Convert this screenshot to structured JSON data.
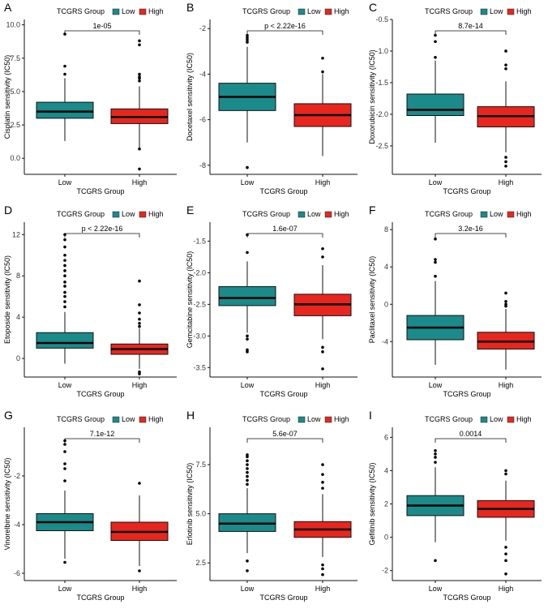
{
  "figure": {
    "colors": {
      "low": "#1b8a8a",
      "high": "#e8261e",
      "axis": "#111111",
      "outlier": "#000000"
    },
    "legend_title": "TCGRS Group",
    "legend_labels": [
      "Low",
      "High"
    ]
  },
  "chart_data": [
    {
      "panel": "A",
      "type": "box",
      "title": "",
      "xlabel": "TCGRS Group",
      "ylabel": "Cisplatin sensitivity (IC50)",
      "categories": [
        "Low",
        "High"
      ],
      "ylim": [
        -1.2,
        10.4
      ],
      "yticks": [
        0.0,
        2.5,
        5.0,
        7.5,
        10.0
      ],
      "ytick_labels": [
        "0.0",
        "2.5",
        "5.0",
        "7.5",
        "10.0"
      ],
      "pvalue": "1e-05",
      "boxes": [
        {
          "group": "Low",
          "whisker_low": 1.3,
          "q1": 3.0,
          "median": 3.5,
          "q3": 4.2,
          "whisker_high": 6.0,
          "outliers": [
            6.3,
            6.9,
            9.3
          ]
        },
        {
          "group": "High",
          "whisker_low": 0.8,
          "q1": 2.6,
          "median": 3.1,
          "q3": 3.7,
          "whisker_high": 5.4,
          "outliers": [
            0.7,
            -0.8,
            5.8,
            6.0,
            6.1,
            6.3,
            8.5,
            8.8
          ]
        }
      ]
    },
    {
      "panel": "B",
      "type": "box",
      "title": "",
      "xlabel": "TCGRS Group",
      "ylabel": "Docetaxel sensitivity (IC50)",
      "categories": [
        "Low",
        "High"
      ],
      "ylim": [
        -8.4,
        -1.6
      ],
      "yticks": [
        -8,
        -6,
        -4,
        -2
      ],
      "ytick_labels": [
        "-8",
        "-6",
        "-4",
        "-2"
      ],
      "pvalue": "p < 2.22e-16",
      "boxes": [
        {
          "group": "Low",
          "whisker_low": -7.0,
          "q1": -5.6,
          "median": -5.0,
          "q3": -4.4,
          "whisker_high": -2.8,
          "outliers": [
            -2.6,
            -2.5,
            -2.4,
            -2.3,
            -8.1
          ]
        },
        {
          "group": "High",
          "whisker_low": -7.6,
          "q1": -6.3,
          "median": -5.8,
          "q3": -5.3,
          "whisker_high": -4.0,
          "outliers": [
            -3.9,
            -3.3
          ]
        }
      ]
    },
    {
      "panel": "C",
      "type": "box",
      "title": "",
      "xlabel": "TCGRS Group",
      "ylabel": "Doxorubicin sensitivity (IC50)",
      "categories": [
        "Low",
        "High"
      ],
      "ylim": [
        -2.95,
        -0.5
      ],
      "yticks": [
        -2.5,
        -2.0,
        -1.5,
        -1.0,
        -0.5
      ],
      "ytick_labels": [
        "-2.5",
        "-2.0",
        "-1.5",
        "-1.0",
        "-0.5"
      ],
      "pvalue": "8.7e-14",
      "boxes": [
        {
          "group": "Low",
          "whisker_low": -2.45,
          "q1": -2.02,
          "median": -1.93,
          "q3": -1.68,
          "whisker_high": -1.15,
          "outliers": [
            -1.1,
            -0.85,
            -0.75
          ]
        },
        {
          "group": "High",
          "whisker_low": -2.6,
          "q1": -2.2,
          "median": -2.03,
          "q3": -1.88,
          "whisker_high": -1.48,
          "outliers": [
            -1.28,
            -1.22,
            -1.0,
            -2.68,
            -2.75,
            -2.82
          ]
        }
      ]
    },
    {
      "panel": "D",
      "type": "box",
      "title": "",
      "xlabel": "TCGRS Group",
      "ylabel": "Etoposide sensitivity (IC50)",
      "categories": [
        "Low",
        "High"
      ],
      "ylim": [
        -1.8,
        13.2
      ],
      "yticks": [
        0,
        4,
        8,
        12
      ],
      "ytick_labels": [
        "0",
        "4",
        "8",
        "12"
      ],
      "pvalue": "p < 2.22e-16",
      "boxes": [
        {
          "group": "Low",
          "whisker_low": -0.5,
          "q1": 1.0,
          "median": 1.5,
          "q3": 2.5,
          "whisker_high": 4.5,
          "outliers": [
            5.0,
            5.5,
            6.0,
            6.4,
            7.0,
            7.4,
            8.0,
            8.5,
            9.0,
            9.5,
            10.0,
            10.8,
            11.5,
            12.0
          ]
        },
        {
          "group": "High",
          "whisker_low": -1.0,
          "q1": 0.4,
          "median": 0.9,
          "q3": 1.4,
          "whisker_high": 2.9,
          "outliers": [
            -1.3,
            -1.5,
            3.1,
            3.4,
            3.8,
            4.4,
            5.2,
            7.5
          ]
        }
      ]
    },
    {
      "panel": "E",
      "type": "box",
      "title": "",
      "xlabel": "TCGRS Group",
      "ylabel": "Gemcitabine sensitivity (IC50)",
      "categories": [
        "Low",
        "High"
      ],
      "ylim": [
        -3.65,
        -1.2
      ],
      "yticks": [
        -3.5,
        -3.0,
        -2.5,
        -2.0,
        -1.5
      ],
      "ytick_labels": [
        "-3.5",
        "-3.0",
        "-2.5",
        "-2.0",
        "-1.5"
      ],
      "pvalue": "1.6e-07",
      "boxes": [
        {
          "group": "Low",
          "whisker_low": -2.95,
          "q1": -2.52,
          "median": -2.4,
          "q3": -2.22,
          "whisker_high": -1.82,
          "outliers": [
            -1.68,
            -1.4,
            -3.0,
            -3.05,
            -3.22,
            -3.25
          ]
        },
        {
          "group": "High",
          "whisker_low": -3.05,
          "q1": -2.68,
          "median": -2.5,
          "q3": -2.34,
          "whisker_high": -1.88,
          "outliers": [
            -1.75,
            -1.62,
            -3.18,
            -3.25,
            -3.52
          ]
        }
      ]
    },
    {
      "panel": "F",
      "type": "box",
      "title": "",
      "xlabel": "TCGRS Group",
      "ylabel": "Paclitaxel sensitivity (IC50)",
      "categories": [
        "Low",
        "High"
      ],
      "ylim": [
        -7.8,
        8.8
      ],
      "yticks": [
        -4,
        0,
        4,
        8
      ],
      "ytick_labels": [
        "-4",
        "0",
        "4",
        "8"
      ],
      "pvalue": "3.2e-16",
      "boxes": [
        {
          "group": "Low",
          "whisker_low": -6.5,
          "q1": -3.8,
          "median": -2.5,
          "q3": -1.2,
          "whisker_high": 2.5,
          "outliers": [
            3.0,
            4.5,
            4.8,
            7.0
          ]
        },
        {
          "group": "High",
          "whisker_low": -7.0,
          "q1": -4.8,
          "median": -4.0,
          "q3": -3.0,
          "whisker_high": -0.5,
          "outliers": [
            -0.2,
            0.0,
            0.3,
            1.2
          ]
        }
      ]
    },
    {
      "panel": "G",
      "type": "box",
      "title": "",
      "xlabel": "TCGRS Group",
      "ylabel": "Vinorelbine sensitivity (IC50)",
      "categories": [
        "Low",
        "High"
      ],
      "ylim": [
        -6.3,
        0.0
      ],
      "yticks": [
        -6,
        -4,
        -2
      ],
      "ytick_labels": [
        "-6",
        "-4",
        "-2"
      ],
      "pvalue": "7.1e-12",
      "boxes": [
        {
          "group": "Low",
          "whisker_low": -5.4,
          "q1": -4.25,
          "median": -3.9,
          "q3": -3.55,
          "whisker_high": -2.6,
          "outliers": [
            -2.2,
            -1.7,
            -1.5,
            -1.0,
            -0.7,
            -0.55,
            -5.55
          ]
        },
        {
          "group": "High",
          "whisker_low": -5.7,
          "q1": -4.65,
          "median": -4.3,
          "q3": -3.9,
          "whisker_high": -2.8,
          "outliers": [
            -2.3,
            -5.9
          ]
        }
      ]
    },
    {
      "panel": "H",
      "type": "box",
      "title": "",
      "xlabel": "TCGRS Group",
      "ylabel": "Erlotinib sensitivity (IC50)",
      "categories": [
        "Low",
        "High"
      ],
      "ylim": [
        1.6,
        9.4
      ],
      "yticks": [
        2.5,
        5.0,
        7.5
      ],
      "ytick_labels": [
        "2.5",
        "5.0",
        "7.5"
      ],
      "pvalue": "5.6e-07",
      "boxes": [
        {
          "group": "Low",
          "whisker_low": 3.0,
          "q1": 4.1,
          "median": 4.5,
          "q3": 5.0,
          "whisker_high": 6.3,
          "outliers": [
            6.5,
            6.7,
            6.9,
            7.1,
            7.3,
            7.5,
            7.7,
            7.9,
            8.0,
            2.6,
            2.1
          ]
        },
        {
          "group": "High",
          "whisker_low": 2.8,
          "q1": 3.8,
          "median": 4.2,
          "q3": 4.6,
          "whisker_high": 6.0,
          "outliers": [
            6.3,
            6.6,
            7.0,
            7.5,
            2.4,
            2.2,
            1.9
          ]
        }
      ]
    },
    {
      "panel": "I",
      "type": "box",
      "title": "",
      "xlabel": "TCGRS Group",
      "ylabel": "Gefitinib sensitivity (IC50)",
      "categories": [
        "Low",
        "High"
      ],
      "ylim": [
        -2.6,
        6.6
      ],
      "yticks": [
        -2,
        0,
        2,
        4,
        6
      ],
      "ytick_labels": [
        "-2",
        "0",
        "2",
        "4",
        "6"
      ],
      "pvalue": "0.0014",
      "boxes": [
        {
          "group": "Low",
          "whisker_low": -0.3,
          "q1": 1.3,
          "median": 1.9,
          "q3": 2.5,
          "whisker_high": 4.2,
          "outliers": [
            4.5,
            4.8,
            5.0,
            5.2,
            -1.4
          ]
        },
        {
          "group": "High",
          "whisker_low": -0.2,
          "q1": 1.2,
          "median": 1.7,
          "q3": 2.2,
          "whisker_high": 3.4,
          "outliers": [
            3.8,
            4.0,
            -0.6,
            -1.0,
            -1.4,
            -2.2
          ]
        }
      ]
    }
  ]
}
